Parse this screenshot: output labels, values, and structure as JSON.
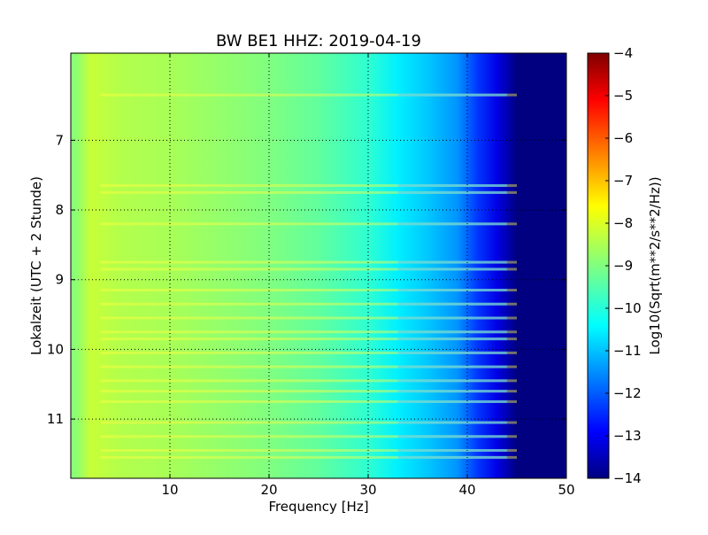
{
  "chart_data": {
    "type": "heatmap",
    "title": "BW BE1 HHZ: 2019-04-19",
    "xlabel": "Frequency [Hz]",
    "ylabel": "Lokalzeit (UTC + 2 Stunde)",
    "xlim": [
      0,
      50
    ],
    "ylim": [
      5.75,
      11.85
    ],
    "y_inverted": true,
    "x_ticks": [
      10,
      20,
      30,
      40,
      50
    ],
    "y_ticks": [
      7,
      8,
      9,
      10,
      11
    ],
    "grid": true,
    "colormap": "jet",
    "colorbar": {
      "label": "Log10(Sqrt(m**2/s**2/Hz))",
      "range": [
        -14,
        -4
      ],
      "ticks": [
        -4,
        -5,
        -6,
        -7,
        -8,
        -9,
        -10,
        -11,
        -12,
        -13,
        -14
      ]
    },
    "approx_profile": {
      "frequency_hz": [
        0.5,
        2,
        5,
        10,
        15,
        20,
        25,
        30,
        33,
        36,
        39,
        41,
        43,
        45,
        50
      ],
      "log10_amplitude": [
        -8.9,
        -8.3,
        -8.5,
        -8.6,
        -8.8,
        -9.0,
        -9.3,
        -9.8,
        -10.4,
        -10.8,
        -11.3,
        -12.2,
        -13.0,
        -14.0,
        -14.0
      ]
    },
    "horizontal_band_times": [
      6.35,
      7.65,
      7.75,
      8.2,
      8.75,
      8.85,
      9.15,
      9.35,
      9.55,
      9.75,
      9.85,
      10.05,
      10.25,
      10.45,
      10.6,
      10.75,
      11.05,
      11.25,
      11.45,
      11.55
    ]
  }
}
